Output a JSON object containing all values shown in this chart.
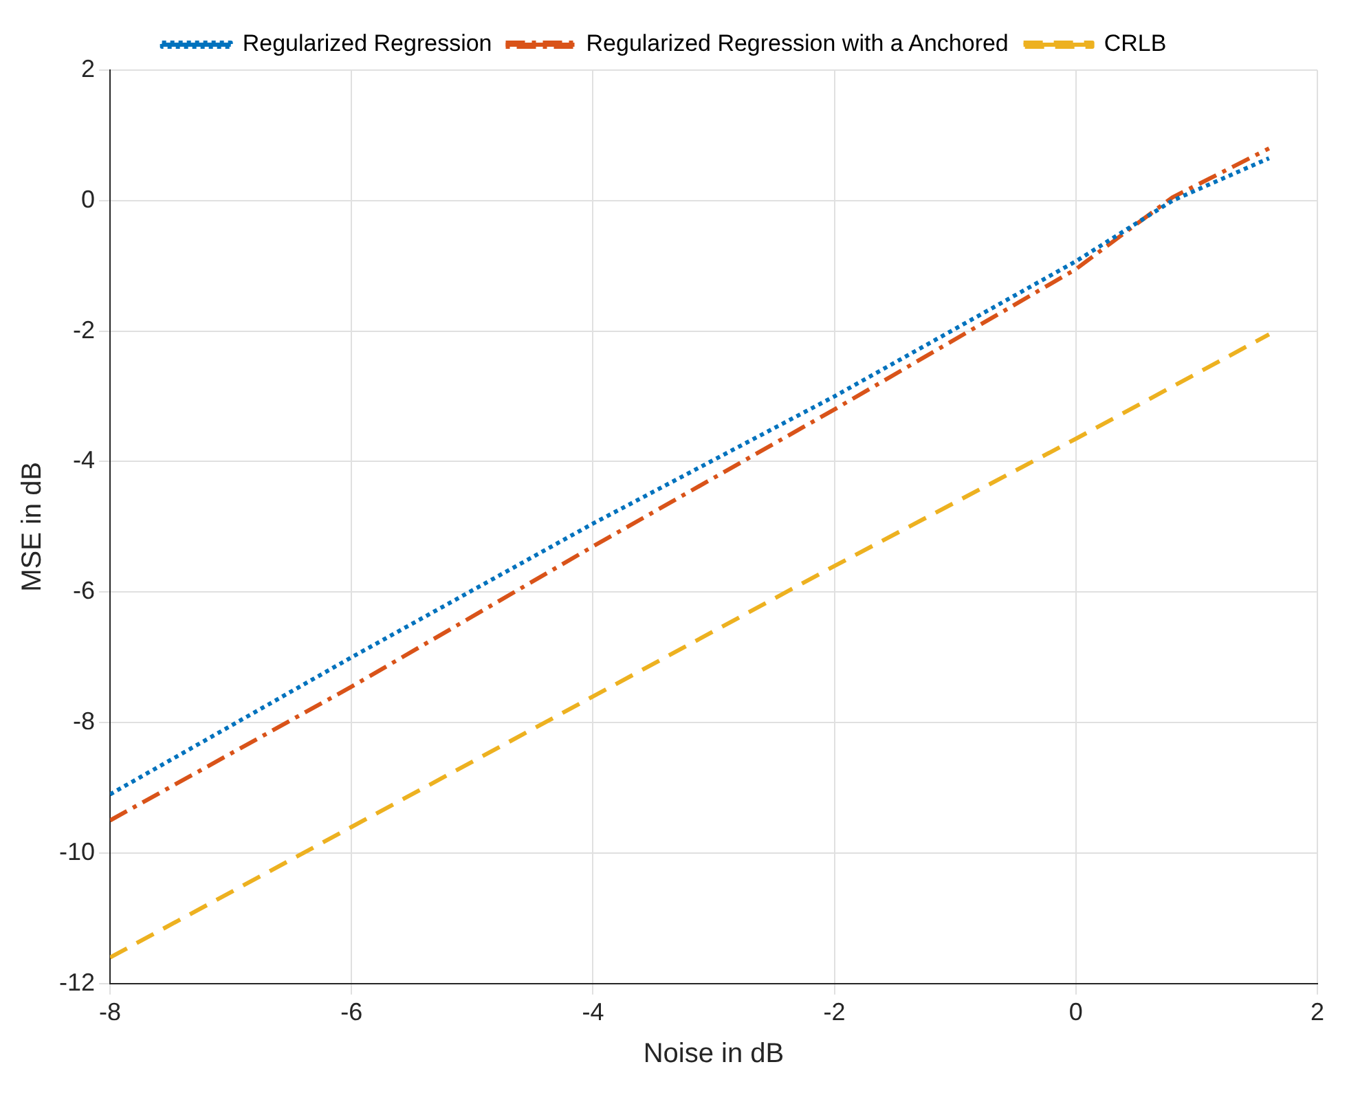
{
  "chart_data": {
    "type": "line",
    "xlabel": "Noise in dB",
    "ylabel": "MSE in dB",
    "x": [
      -8,
      -6,
      -4,
      -2,
      0,
      0.8,
      1.6
    ],
    "series": [
      {
        "name": "Regularized Regression",
        "color": "#0072bd",
        "line_style": "dotted",
        "values": [
          -9.1,
          -7.0,
          -4.95,
          -3.0,
          -0.93,
          0.0,
          0.65
        ]
      },
      {
        "name": "Regularized Regression with a Anchored",
        "color": "#d95319",
        "line_style": "dashdot",
        "values": [
          -9.5,
          -7.45,
          -5.3,
          -3.2,
          -1.05,
          0.05,
          0.8
        ]
      },
      {
        "name": "CRLB",
        "color": "#edb120",
        "line_style": "dashed",
        "values": [
          -11.6,
          -9.6,
          -7.6,
          -5.6,
          -3.65,
          -2.85,
          -2.05
        ]
      }
    ],
    "xlim": [
      -8,
      2
    ],
    "xticks": [
      -8,
      -6,
      -4,
      -2,
      0,
      2
    ],
    "ylim": [
      -12,
      2
    ],
    "yticks": [
      -12,
      -10,
      -8,
      -6,
      -4,
      -2,
      0,
      2
    ],
    "grid": true,
    "legend": "top",
    "marker": "none"
  }
}
